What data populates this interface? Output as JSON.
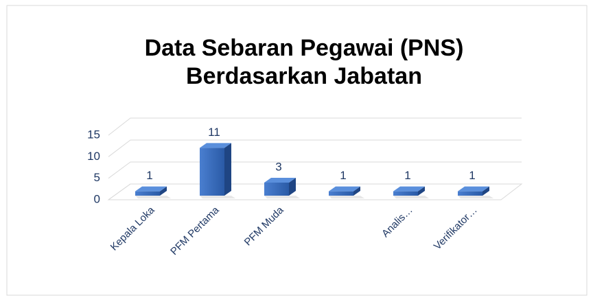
{
  "chart_data": {
    "type": "bar3d",
    "title": [
      "Data Sebaran Pegawai  (PNS)",
      "Berdasarkan Jabatan"
    ],
    "categories": [
      "Kepala Loka",
      "PFM Pertama",
      "PFM Muda",
      null,
      "Analis…",
      "Verifikator…"
    ],
    "values": [
      1,
      11,
      3,
      1,
      1,
      1
    ],
    "color": "#2f63b5",
    "ylim": [
      0,
      15
    ],
    "yticks": [
      0,
      5,
      10,
      15
    ],
    "grid": true
  }
}
